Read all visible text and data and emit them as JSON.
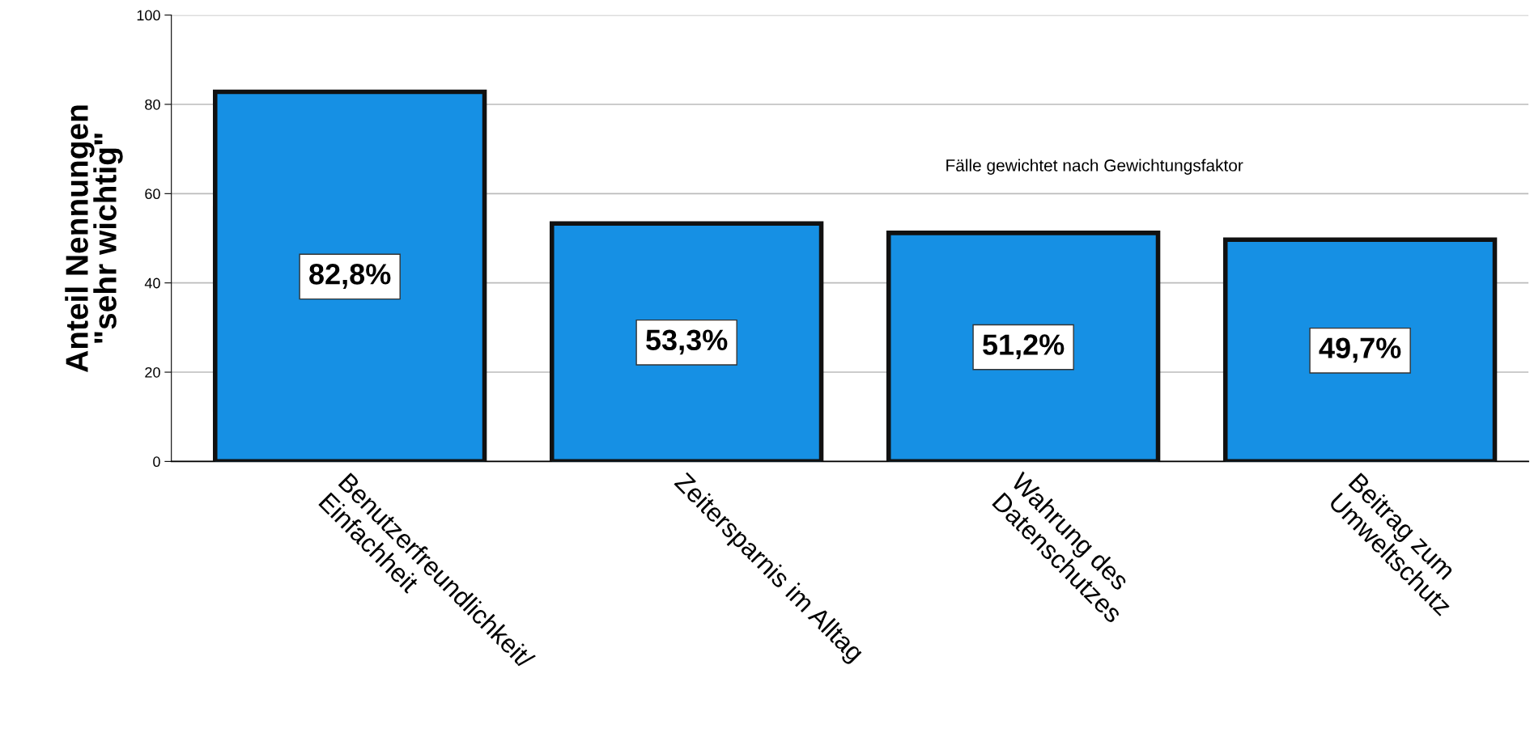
{
  "chart_data": {
    "type": "bar",
    "categories": [
      "Benutzerfreundlichkeit/\nEinfachheit",
      "Zeitersparnis im Alltag",
      "Wahrung des\nDatenschutzes",
      "Beitrag zum\nUmweltschutz"
    ],
    "values": [
      82.8,
      53.3,
      51.2,
      49.7
    ],
    "value_labels": [
      "82,8%",
      "53,3%",
      "51,2%",
      "49,7%"
    ],
    "color": "#1690e4",
    "ylabel": "Anteil Nennungen\n\"sehr wichtig\"",
    "annotations": [
      "Fälle gewichtet nach Gewichtungsfaktor"
    ],
    "ylim": [
      0,
      100
    ],
    "yticks": [
      0,
      20,
      40,
      60,
      80,
      100
    ],
    "grid": "y",
    "legend": false
  }
}
